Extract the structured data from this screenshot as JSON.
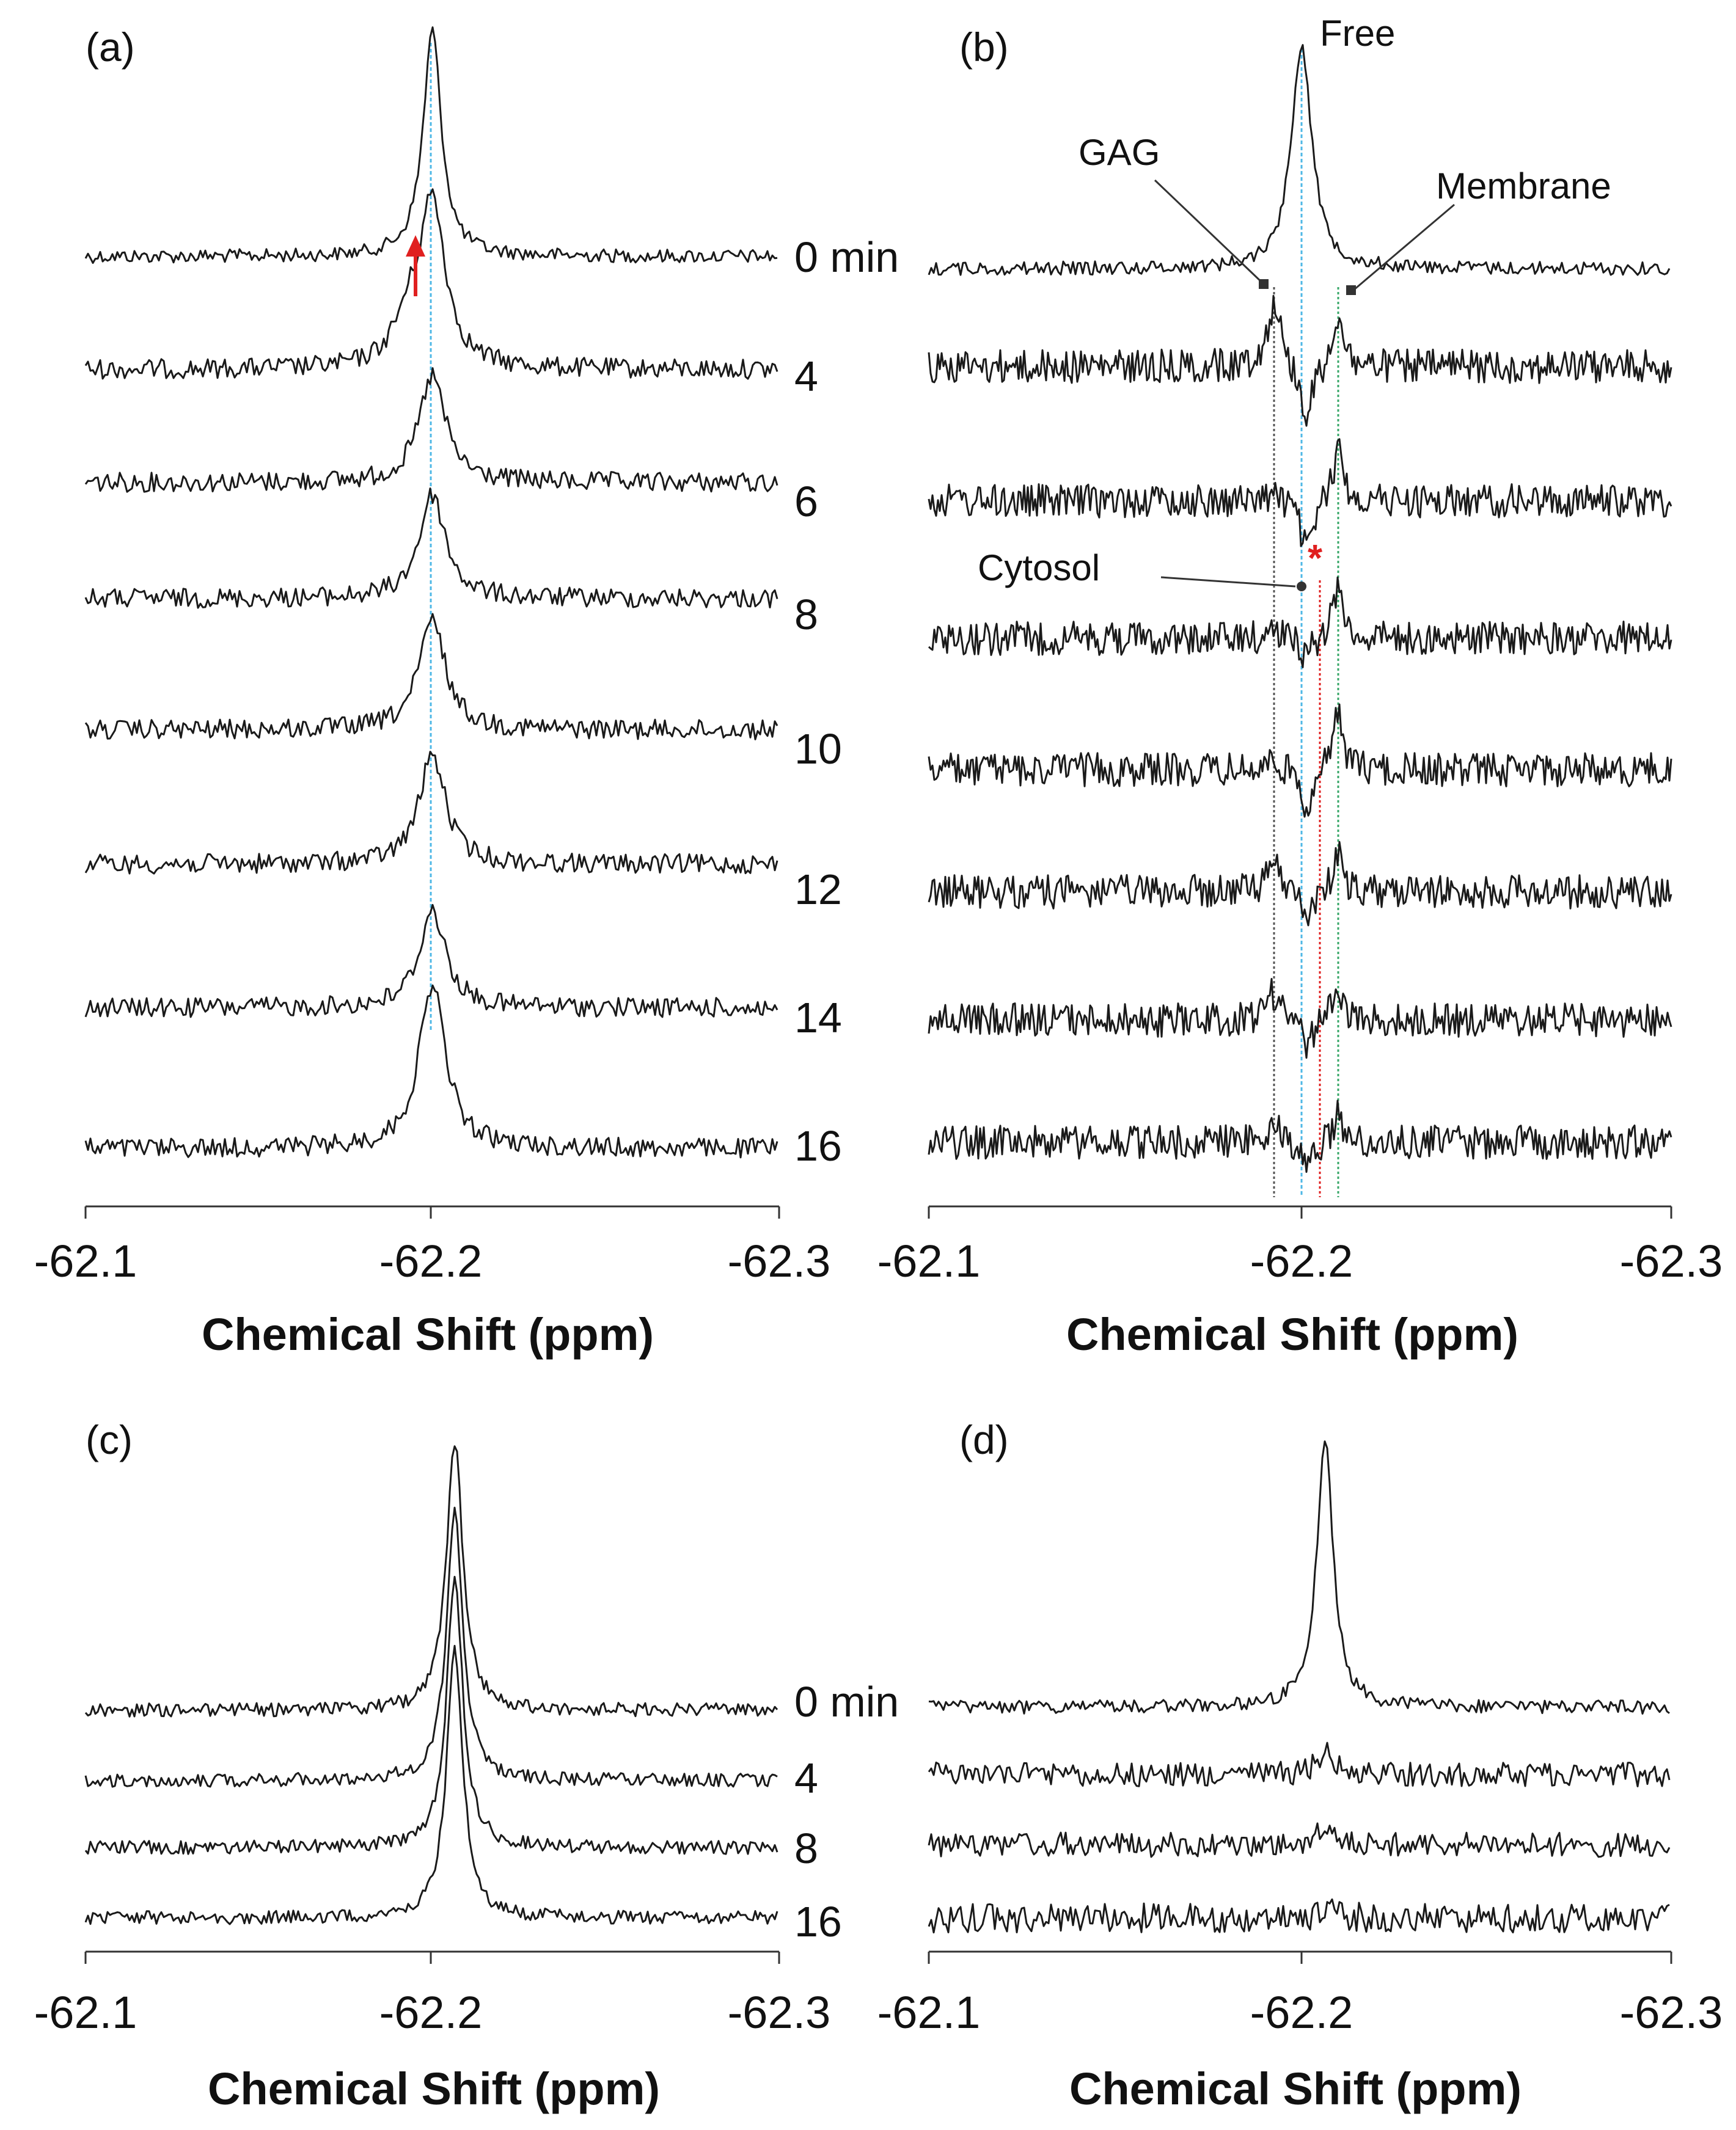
{
  "colors": {
    "trace": "#1a1a1a",
    "free_line": "#4fb8e6",
    "gag_line": "#555555",
    "cytosol_line": "#e02020",
    "membrane_line": "#3aa86a",
    "arrow": "#e02020"
  },
  "chart_data": [
    {
      "type": "line",
      "panel": "(a)",
      "xlabel": "Chemical Shift (ppm)",
      "xlim": [
        -62.1,
        -62.3
      ],
      "x_axis_reversed": true,
      "ticks": [
        "-62.1",
        "-62.2",
        "-62.3"
      ],
      "time_labels": [
        "0 min",
        "4",
        "6",
        "8",
        "10",
        "12",
        "14",
        "16"
      ],
      "peak_ppm": -62.2,
      "series": [
        {
          "time": "0 min",
          "peak_ppm": -62.2,
          "relative_height": 1.0,
          "noise": 0.09
        },
        {
          "time": "4",
          "peak_ppm": -62.2,
          "relative_height": 0.75,
          "noise": 0.12
        },
        {
          "time": "6",
          "peak_ppm": -62.2,
          "relative_height": 0.45,
          "noise": 0.14
        },
        {
          "time": "8",
          "peak_ppm": -62.2,
          "relative_height": 0.45,
          "noise": 0.14
        },
        {
          "time": "10",
          "peak_ppm": -62.2,
          "relative_height": 0.45,
          "noise": 0.14
        },
        {
          "time": "12",
          "peak_ppm": -62.2,
          "relative_height": 0.45,
          "noise": 0.14
        },
        {
          "time": "14",
          "peak_ppm": -62.2,
          "relative_height": 0.45,
          "noise": 0.14
        },
        {
          "time": "16",
          "peak_ppm": -62.2,
          "relative_height": 0.55,
          "noise": 0.14
        }
      ],
      "vertical_guides": [
        {
          "ppm": -62.2,
          "color": "#4fb8e6"
        }
      ],
      "arrow_ppm": -62.196
    },
    {
      "type": "line",
      "panel": "(b)",
      "xlabel": "Chemical Shift (ppm)",
      "xlim": [
        -62.1,
        -62.3
      ],
      "x_axis_reversed": true,
      "ticks": [
        "-62.1",
        "-62.2",
        "-62.3"
      ],
      "annotations": [
        "Free",
        "GAG",
        "Membrane",
        "Cytosol"
      ],
      "star": "*",
      "guide_ppm": {
        "GAG": -62.193,
        "Free": -62.2,
        "Cytosol": -62.207,
        "Membrane": -62.21
      },
      "series": [
        {
          "index": 0,
          "type": "reference",
          "peak_ppm": -62.2,
          "relative_height": 1.0
        },
        {
          "index": 1,
          "type": "difference",
          "gag": 0.35,
          "free_dip": -0.3,
          "membrane": 0.3
        },
        {
          "index": 2,
          "type": "difference",
          "gag": 0.05,
          "free_dip": -0.28,
          "membrane": 0.3
        },
        {
          "index": 3,
          "type": "difference",
          "gag": 0.05,
          "free_dip": -0.1,
          "membrane": 0.3
        },
        {
          "index": 4,
          "type": "difference",
          "gag": 0.05,
          "free_dip": -0.2,
          "membrane": 0.3
        },
        {
          "index": 5,
          "type": "difference",
          "gag": 0.15,
          "free_dip": -0.15,
          "membrane": 0.2
        },
        {
          "index": 6,
          "type": "difference",
          "gag": 0.15,
          "free_dip": -0.15,
          "membrane": 0.18
        },
        {
          "index": 7,
          "type": "difference",
          "gag": 0.1,
          "free_dip": -0.15,
          "membrane": 0.15
        }
      ]
    },
    {
      "type": "line",
      "panel": "(c)",
      "xlabel": "Chemical Shift (ppm)",
      "xlim": [
        -62.1,
        -62.3
      ],
      "x_axis_reversed": true,
      "ticks": [
        "-62.1",
        "-62.2",
        "-62.3"
      ],
      "time_labels": [
        "0 min",
        "4",
        "8",
        "16"
      ],
      "series": [
        {
          "time": "0 min",
          "peak_ppm": -62.21,
          "relative_height": 1.0,
          "noise": 0.03
        },
        {
          "time": "4",
          "peak_ppm": -62.21,
          "relative_height": 1.0,
          "noise": 0.03
        },
        {
          "time": "8",
          "peak_ppm": -62.21,
          "relative_height": 1.0,
          "noise": 0.03
        },
        {
          "time": "16",
          "peak_ppm": -62.21,
          "relative_height": 1.0,
          "noise": 0.03
        }
      ]
    },
    {
      "type": "line",
      "panel": "(d)",
      "xlabel": "Chemical Shift (ppm)",
      "xlim": [
        -62.1,
        -62.3
      ],
      "x_axis_reversed": true,
      "ticks": [
        "-62.1",
        "-62.2",
        "-62.3"
      ],
      "series": [
        {
          "index": 0,
          "peak_ppm": -62.21,
          "relative_height": 1.0,
          "noise": 0.03
        },
        {
          "index": 1,
          "peak_ppm": -62.21,
          "relative_height": 0.08,
          "noise": 0.09
        },
        {
          "index": 2,
          "peak_ppm": -62.21,
          "relative_height": 0.05,
          "noise": 0.09
        },
        {
          "index": 3,
          "peak_ppm": -62.21,
          "relative_height": 0.03,
          "noise": 0.11
        }
      ]
    }
  ]
}
